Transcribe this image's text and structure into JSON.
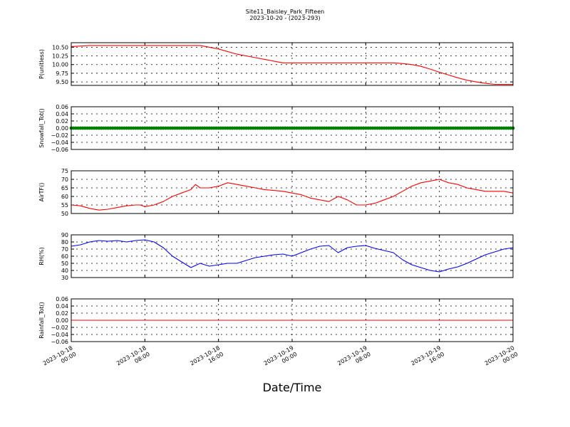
{
  "figure": {
    "title": "Site11_Baisley_Park_Fifteen",
    "subtitle": "2023-10-20 - (2023-293)",
    "xlabel": "Date/Time"
  },
  "chart_data": [
    {
      "type": "line",
      "ylabel": "P(unitless)",
      "ylim": [
        9.4,
        10.63
      ],
      "yticks": [
        9.5,
        9.75,
        10.0,
        10.25,
        10.5
      ],
      "ytick_labels": [
        "9.50",
        "9.75",
        "10.00",
        "10.25",
        "10.50"
      ],
      "color": "#ff0000",
      "marker": false,
      "series": [
        {
          "x": [
            0,
            2,
            6,
            10,
            14,
            16,
            18,
            20,
            21,
            22,
            23,
            24,
            28,
            30,
            32,
            34,
            35,
            36,
            37,
            38,
            39,
            40,
            41,
            42,
            43,
            44,
            45,
            46,
            47,
            48
          ],
          "y": [
            10.52,
            10.55,
            10.55,
            10.55,
            10.55,
            10.45,
            10.3,
            10.2,
            10.15,
            10.1,
            10.05,
            10.05,
            10.05,
            10.05,
            10.05,
            10.05,
            10.05,
            10.03,
            10.0,
            9.95,
            9.87,
            9.78,
            9.7,
            9.62,
            9.55,
            9.5,
            9.46,
            9.43,
            9.43,
            9.43
          ]
        }
      ]
    },
    {
      "type": "line",
      "ylabel": "Snowfall_Tot()",
      "ylim": [
        -0.06,
        0.06
      ],
      "yticks": [
        -0.06,
        -0.04,
        -0.02,
        0.0,
        0.02,
        0.04,
        0.06
      ],
      "ytick_labels": [
        "−0.06",
        "−0.04",
        "−0.02",
        "0.00",
        "0.02",
        "0.04",
        "0.06"
      ],
      "color": "#008000",
      "marker": true,
      "series": [
        {
          "x": [
            0,
            48
          ],
          "y": [
            0,
            0
          ]
        }
      ]
    },
    {
      "type": "line",
      "ylabel": "AirTF()",
      "ylim": [
        50,
        75
      ],
      "yticks": [
        50,
        55,
        60,
        65,
        70,
        75
      ],
      "ytick_labels": [
        "50",
        "55",
        "60",
        "65",
        "70",
        "75"
      ],
      "color": "#ff0000",
      "marker": false,
      "series": [
        {
          "x": [
            0,
            1,
            2,
            3,
            4,
            5,
            6,
            7,
            7.5,
            8,
            9,
            10,
            11,
            12,
            13,
            13.5,
            14,
            15,
            16,
            17,
            18,
            19,
            20,
            21,
            22,
            23,
            24,
            25,
            26,
            27,
            28,
            29,
            30,
            31,
            32,
            33,
            34,
            35,
            36,
            37,
            38,
            39,
            40,
            41,
            42,
            43,
            44,
            45,
            46,
            47,
            48
          ],
          "y": [
            55,
            54.5,
            53,
            52,
            52.5,
            53.5,
            54.5,
            55,
            55,
            54,
            55,
            57,
            60,
            62,
            64,
            67,
            65,
            65,
            66,
            68,
            67,
            66,
            65,
            64,
            63.5,
            63,
            62,
            61,
            59,
            58,
            57,
            60,
            58,
            55,
            55,
            56,
            58,
            60,
            63,
            66,
            68,
            69,
            70,
            68,
            67,
            65,
            64,
            63,
            63,
            63,
            62
          ]
        }
      ]
    },
    {
      "type": "line",
      "ylabel": "RH(%)",
      "ylim": [
        30,
        90
      ],
      "yticks": [
        30,
        40,
        50,
        60,
        70,
        80,
        90
      ],
      "ytick_labels": [
        "30",
        "40",
        "50",
        "60",
        "70",
        "80",
        "90"
      ],
      "color": "#0000ff",
      "marker": false,
      "series": [
        {
          "x": [
            0,
            1,
            2,
            3,
            4,
            5,
            6,
            7,
            8,
            9,
            10,
            11,
            12,
            13,
            14,
            15,
            16,
            17,
            18,
            19,
            20,
            21,
            22,
            23,
            24,
            25,
            26,
            27,
            28,
            29,
            30,
            31,
            32,
            33,
            34,
            35,
            36,
            37,
            38,
            39,
            40,
            41,
            42,
            43,
            44,
            45,
            46,
            47,
            48
          ],
          "y": [
            74,
            76,
            80,
            82,
            81,
            82,
            80,
            82,
            83,
            80,
            72,
            60,
            52,
            44,
            50,
            46,
            48,
            50,
            50,
            54,
            58,
            60,
            62,
            63,
            60,
            65,
            70,
            74,
            75,
            65,
            72,
            74,
            75,
            71,
            68,
            65,
            55,
            48,
            44,
            40,
            38,
            42,
            45,
            50,
            56,
            62,
            66,
            70,
            72
          ]
        }
      ]
    },
    {
      "type": "line",
      "ylabel": "Rainfall_Tot()",
      "ylim": [
        -0.06,
        0.06
      ],
      "yticks": [
        -0.06,
        -0.04,
        -0.02,
        0.0,
        0.02,
        0.04,
        0.06
      ],
      "ytick_labels": [
        "−0.06",
        "−0.04",
        "−0.02",
        "0.00",
        "0.02",
        "0.04",
        "0.06"
      ],
      "color": "#ff0000",
      "marker": false,
      "series": [
        {
          "x": [
            0,
            48
          ],
          "y": [
            0,
            0
          ]
        }
      ]
    }
  ],
  "x_axis": {
    "unit": "hours",
    "range": [
      0,
      48
    ],
    "ticks": [
      0,
      8,
      16,
      24,
      32,
      40,
      48
    ],
    "tick_labels": [
      [
        "2023-10-18",
        "00:00"
      ],
      [
        "2023-10-18",
        "08:00"
      ],
      [
        "2023-10-18",
        "16:00"
      ],
      [
        "2023-10-19",
        "00:00"
      ],
      [
        "2023-10-19",
        "08:00"
      ],
      [
        "2023-10-19",
        "16:00"
      ],
      [
        "2023-10-20",
        "00:00"
      ]
    ]
  }
}
